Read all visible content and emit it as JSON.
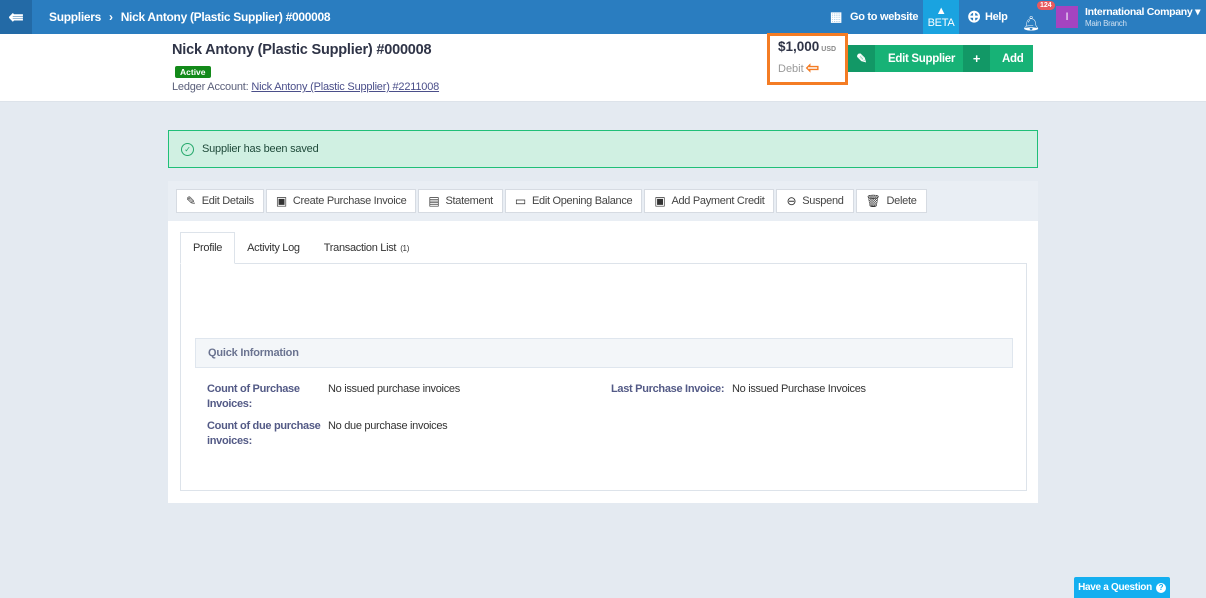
{
  "topbar": {
    "breadcrumb": [
      "Suppliers",
      "Nick Antony (Plastic Supplier) #000008"
    ],
    "go_to_website": "Go to website",
    "beta": "BETA",
    "help": "Help",
    "notifications": "124",
    "avatar_letter": "I",
    "company": "International Company",
    "branch": "Main Branch"
  },
  "header": {
    "title": "Nick Antony (Plastic Supplier) #000008",
    "status": "Active",
    "ledger_label": "Ledger Account:",
    "ledger_link": "Nick Antony (Plastic Supplier) #2211008",
    "amount": "$1,000",
    "currency": "USD",
    "balance_type": "Debit",
    "edit_supplier": "Edit Supplier",
    "add": "Add"
  },
  "alert": {
    "message": "Supplier has been saved"
  },
  "actions": [
    "Edit Details",
    "Create Purchase Invoice",
    "Statement",
    "Edit Opening Balance",
    "Add Payment Credit",
    "Suspend",
    "Delete"
  ],
  "tabs": [
    {
      "label": "Profile"
    },
    {
      "label": "Activity Log"
    },
    {
      "label": "Transaction List",
      "count": "(1)"
    }
  ],
  "quick_info": {
    "title": "Quick Information",
    "count_purchase_label": "Count of Purchase Invoices:",
    "count_purchase_value": "No issued purchase invoices",
    "count_due_label": "Count of due purchase invoices:",
    "count_due_value": "No due purchase invoices",
    "last_label": "Last Purchase Invoice:",
    "last_value": "No issued Purchase Invoices"
  },
  "help_button": "Have a Question",
  "colors": {
    "topbar": "#2a7dc0",
    "green": "#17b276",
    "highlight": "#f47c24",
    "status": "#138a1a"
  }
}
